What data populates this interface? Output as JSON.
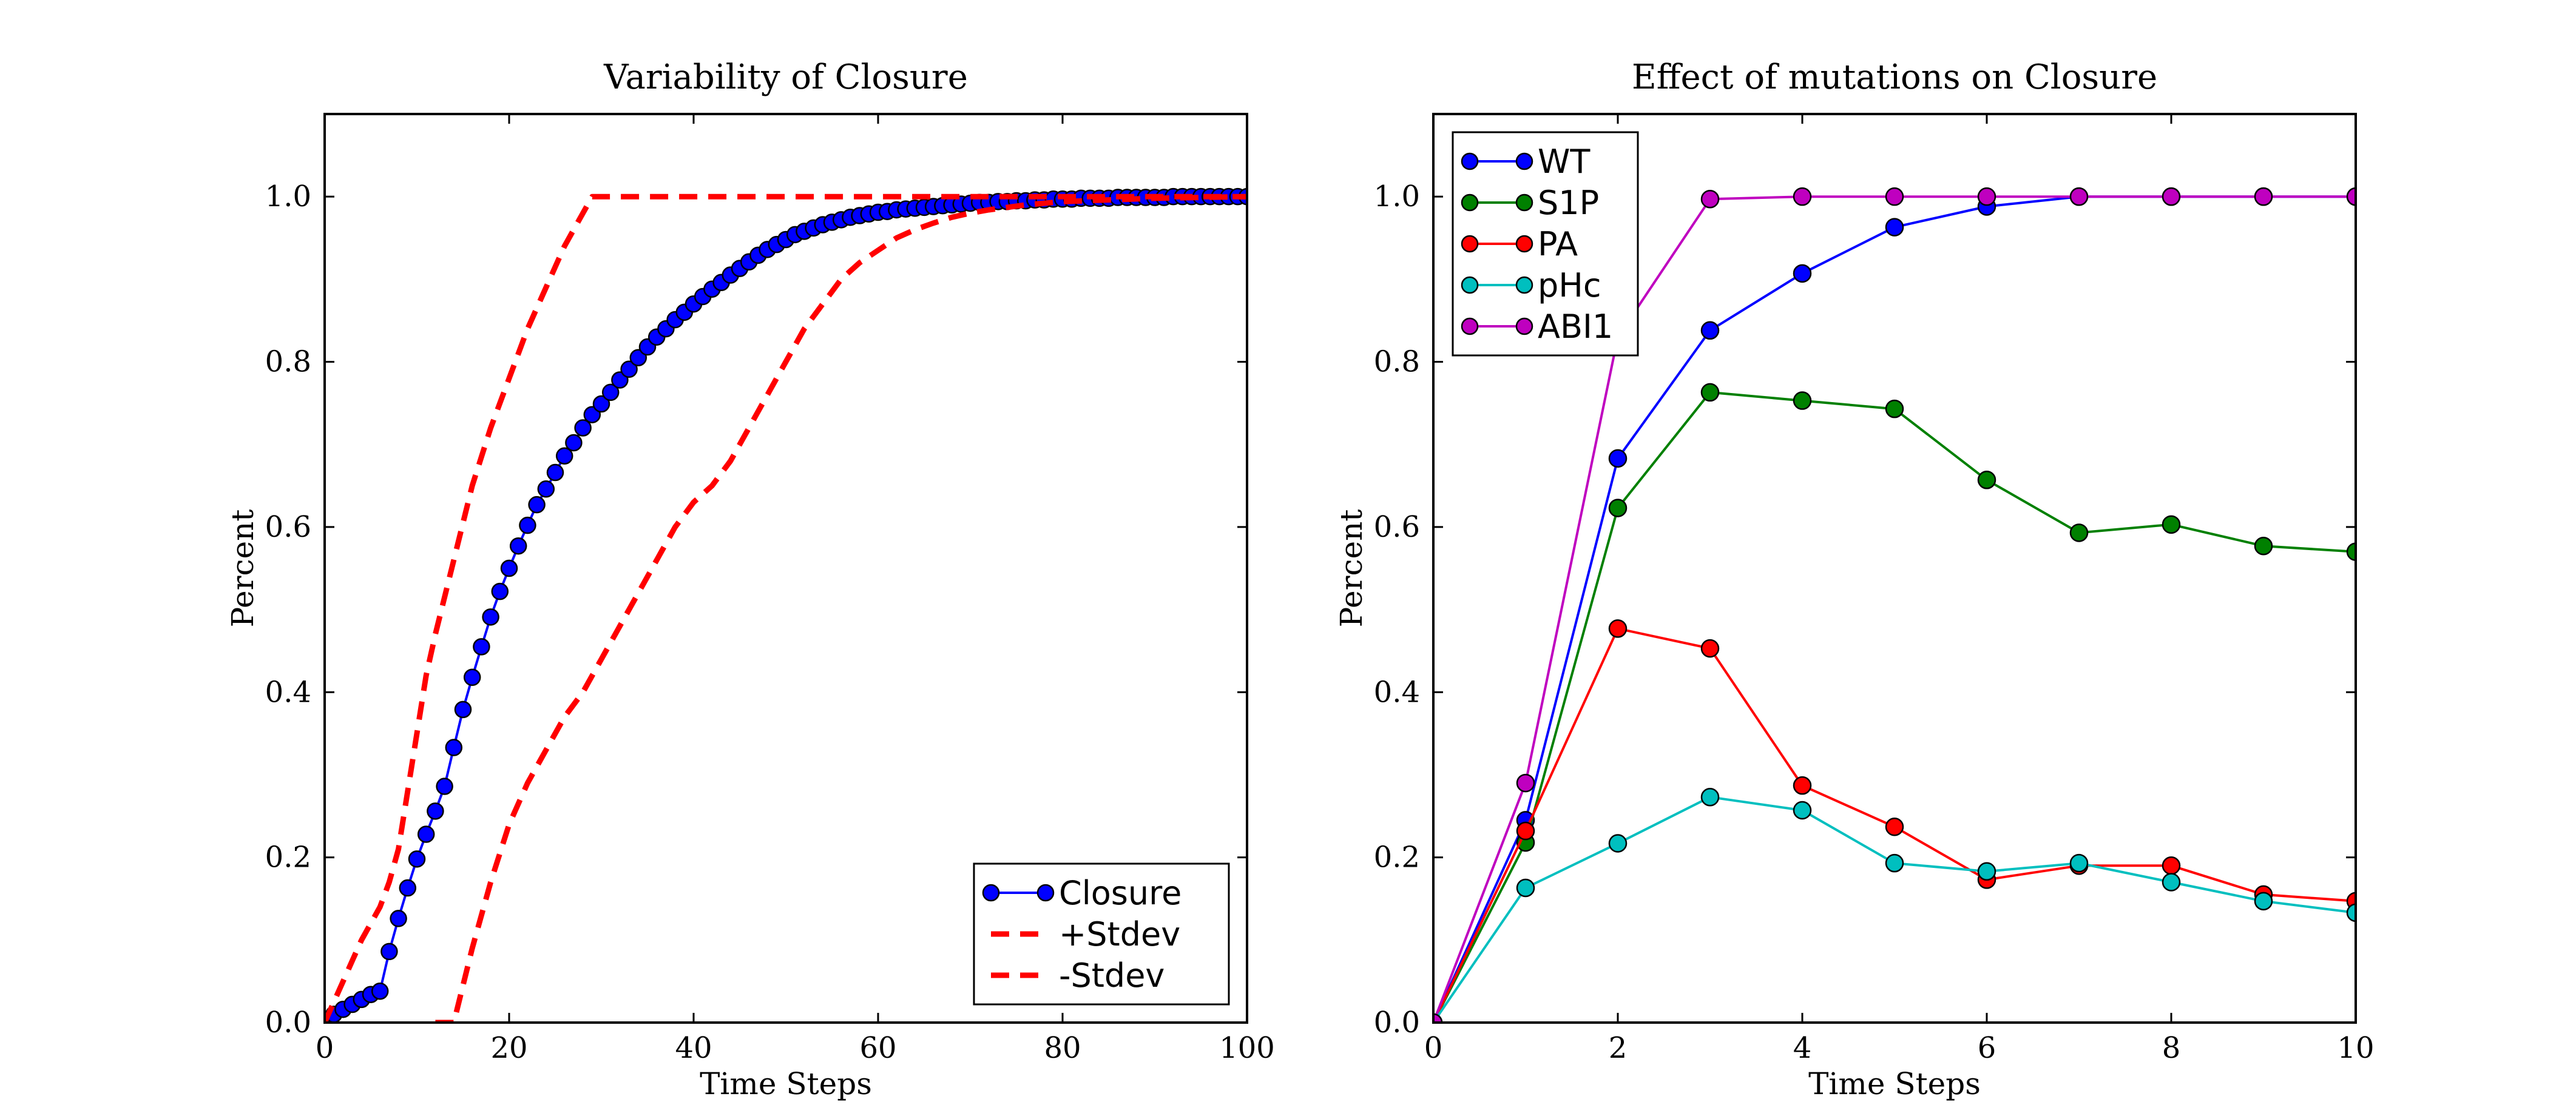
{
  "chart_data": [
    {
      "type": "line",
      "title": "Variability of Closure",
      "xlabel": "Time Steps",
      "ylabel": "Percent",
      "xlim": [
        0,
        100
      ],
      "ylim": [
        0,
        1.1
      ],
      "xticks": [
        "0",
        "20",
        "40",
        "60",
        "80",
        "100"
      ],
      "yticks": [
        "0.0",
        "0.2",
        "0.4",
        "0.6",
        "0.8",
        "1.0"
      ],
      "legend_position": "lower-right",
      "series": [
        {
          "name": "Closure",
          "color": "#0000ff",
          "style": "solid-marker",
          "x": [
            0,
            1,
            2,
            3,
            4,
            5,
            6,
            7,
            8,
            9,
            10,
            11,
            12,
            13,
            14,
            15,
            16,
            17,
            18,
            19,
            20,
            21,
            22,
            23,
            24,
            25,
            26,
            27,
            28,
            29,
            30,
            31,
            32,
            33,
            34,
            35,
            36,
            37,
            38,
            39,
            40,
            41,
            42,
            43,
            44,
            45,
            46,
            47,
            48,
            49,
            50,
            51,
            52,
            53,
            54,
            55,
            56,
            57,
            58,
            59,
            60,
            61,
            62,
            63,
            64,
            65,
            66,
            67,
            68,
            69,
            70,
            71,
            72,
            73,
            74,
            75,
            76,
            77,
            78,
            79,
            80,
            81,
            82,
            83,
            84,
            85,
            86,
            87,
            88,
            89,
            90,
            91,
            92,
            93,
            94,
            95,
            96,
            97,
            98,
            99,
            100
          ],
          "y": [
            0.0,
            0.01,
            0.016,
            0.022,
            0.028,
            0.034,
            0.038,
            0.086,
            0.126,
            0.163,
            0.198,
            0.228,
            0.256,
            0.286,
            0.333,
            0.379,
            0.418,
            0.455,
            0.491,
            0.522,
            0.55,
            0.577,
            0.602,
            0.627,
            0.646,
            0.666,
            0.686,
            0.702,
            0.72,
            0.736,
            0.749,
            0.763,
            0.778,
            0.791,
            0.805,
            0.818,
            0.83,
            0.84,
            0.851,
            0.86,
            0.87,
            0.879,
            0.888,
            0.896,
            0.905,
            0.913,
            0.921,
            0.929,
            0.936,
            0.942,
            0.948,
            0.954,
            0.958,
            0.962,
            0.966,
            0.969,
            0.972,
            0.975,
            0.977,
            0.979,
            0.981,
            0.982,
            0.984,
            0.985,
            0.986,
            0.987,
            0.988,
            0.989,
            0.99,
            0.991,
            0.992,
            0.993,
            0.993,
            0.994,
            0.994,
            0.995,
            0.995,
            0.996,
            0.996,
            0.997,
            0.997,
            0.997,
            0.998,
            0.998,
            0.998,
            0.998,
            0.999,
            0.999,
            0.999,
            0.999,
            0.999,
            0.999,
            1.0,
            1.0,
            1.0,
            1.0,
            1.0,
            1.0,
            1.0,
            1.0,
            1.0
          ]
        },
        {
          "name": "+Stdev",
          "color": "#ff0000",
          "style": "dashed",
          "x": [
            0,
            2,
            4,
            6,
            7,
            8,
            9,
            10,
            11,
            12,
            14,
            16,
            18,
            20,
            22,
            24,
            26,
            28,
            29,
            30,
            40,
            50,
            60,
            70,
            80,
            90,
            100
          ],
          "y": [
            0.0,
            0.05,
            0.1,
            0.14,
            0.17,
            0.21,
            0.28,
            0.35,
            0.42,
            0.47,
            0.56,
            0.65,
            0.72,
            0.78,
            0.84,
            0.89,
            0.94,
            0.98,
            1.0,
            1.0,
            1.0,
            1.0,
            1.0,
            1.0,
            1.0,
            1.0,
            1.0
          ]
        },
        {
          "name": "-Stdev",
          "color": "#ff0000",
          "style": "dashed",
          "x": [
            12,
            13,
            14,
            16,
            18,
            20,
            22,
            24,
            26,
            28,
            30,
            32,
            34,
            36,
            38,
            40,
            42,
            44,
            46,
            48,
            50,
            52,
            54,
            56,
            58,
            60,
            62,
            64,
            66,
            68,
            70,
            72,
            74,
            76,
            78,
            80,
            85,
            90,
            95,
            100
          ],
          "y": [
            0.0,
            0.0,
            0.0,
            0.09,
            0.17,
            0.24,
            0.29,
            0.33,
            0.37,
            0.4,
            0.44,
            0.48,
            0.52,
            0.56,
            0.6,
            0.63,
            0.65,
            0.68,
            0.72,
            0.76,
            0.8,
            0.84,
            0.87,
            0.9,
            0.92,
            0.935,
            0.95,
            0.96,
            0.968,
            0.975,
            0.98,
            0.984,
            0.987,
            0.99,
            0.992,
            0.994,
            0.996,
            0.998,
            0.999,
            1.0
          ]
        }
      ]
    },
    {
      "type": "line",
      "title": "Effect of mutations on Closure",
      "xlabel": "Time Steps",
      "ylabel": "Percent",
      "xlim": [
        0,
        10
      ],
      "ylim": [
        0,
        1.1
      ],
      "xticks": [
        "0",
        "2",
        "4",
        "6",
        "8",
        "10"
      ],
      "yticks": [
        "0.0",
        "0.2",
        "0.4",
        "0.6",
        "0.8",
        "1.0"
      ],
      "legend_position": "upper-left",
      "x": [
        0,
        1,
        2,
        3,
        4,
        5,
        6,
        7,
        8,
        9,
        10
      ],
      "series": [
        {
          "name": "WT",
          "color": "#0000ff",
          "values": [
            0.0,
            0.245,
            0.683,
            0.838,
            0.907,
            0.963,
            0.988,
            1.0,
            1.0,
            1.0,
            1.0
          ]
        },
        {
          "name": "S1P",
          "color": "#008000",
          "values": [
            0.0,
            0.218,
            0.623,
            0.763,
            0.753,
            0.743,
            0.657,
            0.593,
            0.603,
            0.577,
            0.57
          ]
        },
        {
          "name": "PA",
          "color": "#ff0000",
          "values": [
            0.0,
            0.232,
            0.477,
            0.453,
            0.287,
            0.237,
            0.173,
            0.19,
            0.19,
            0.155,
            0.147
          ]
        },
        {
          "name": "pHc",
          "color": "#00bfbf",
          "values": [
            0.0,
            0.163,
            0.217,
            0.273,
            0.257,
            0.193,
            0.183,
            0.193,
            0.17,
            0.147,
            0.133
          ]
        },
        {
          "name": "ABI1",
          "color": "#bf00bf",
          "values": [
            0.0,
            0.29,
            0.83,
            0.997,
            1.0,
            1.0,
            1.0,
            1.0,
            1.0,
            1.0,
            1.0
          ]
        }
      ]
    }
  ]
}
